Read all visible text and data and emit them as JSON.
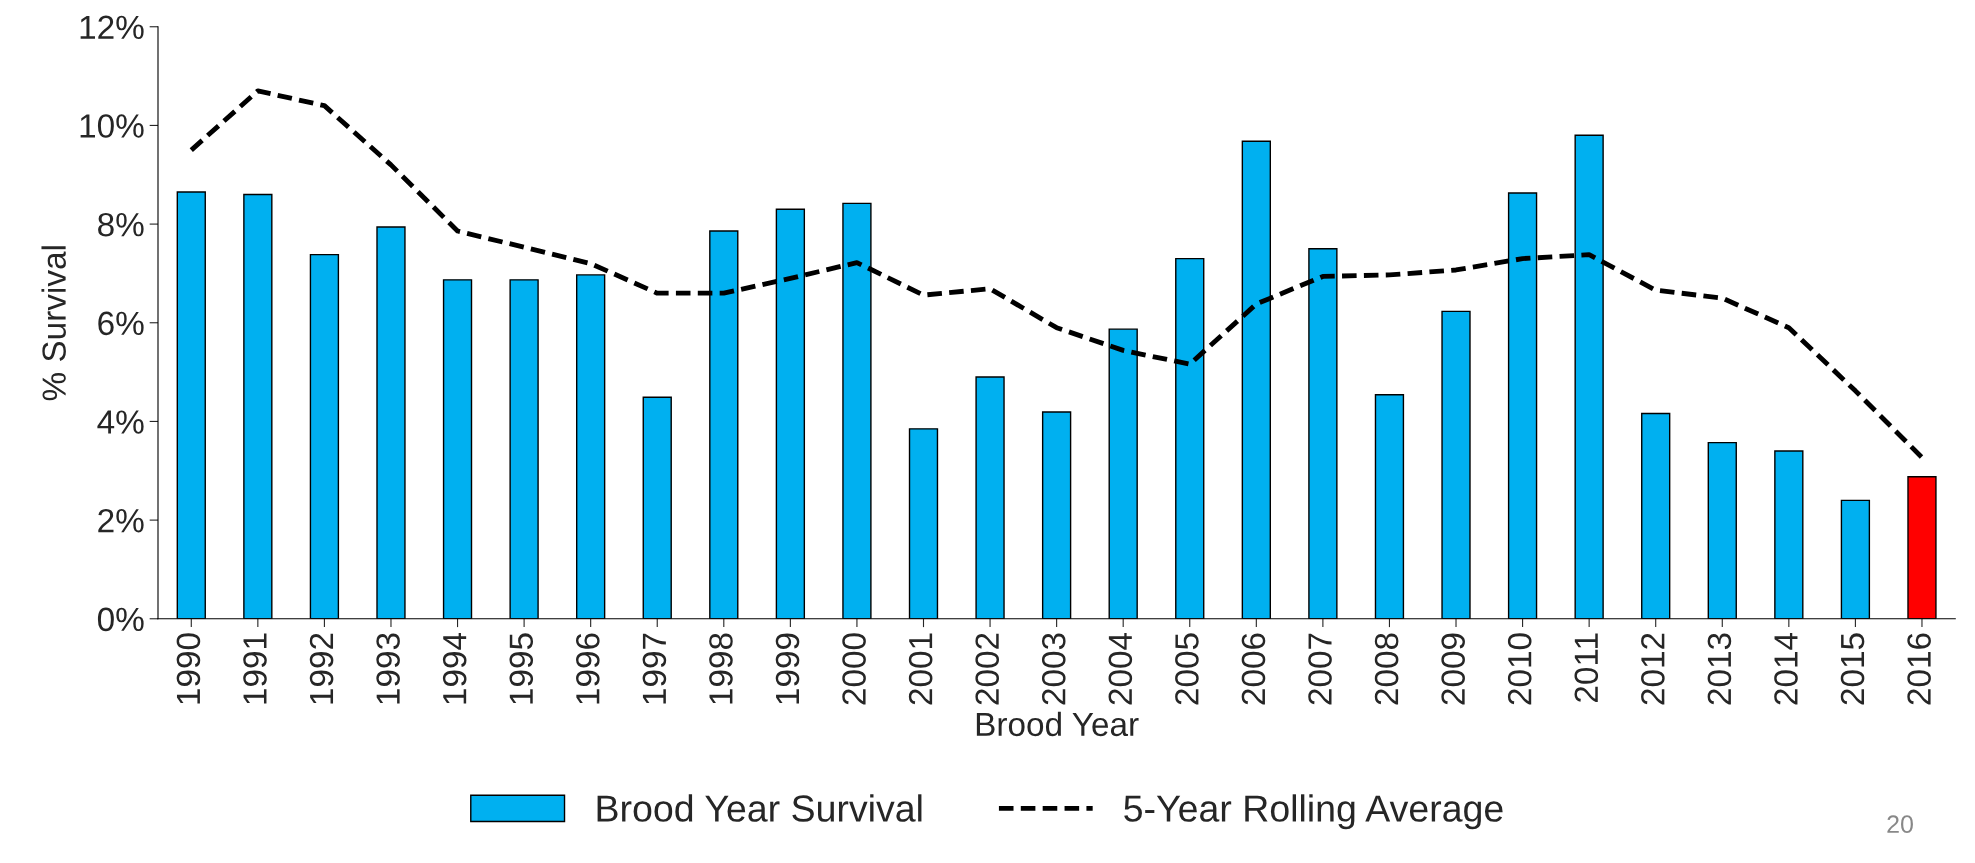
{
  "chart_data": {
    "type": "bar",
    "xlabel": "Brood Year",
    "ylabel": "% Survival",
    "categories": [
      "1990",
      "1991",
      "1992",
      "1993",
      "1994",
      "1995",
      "1996",
      "1997",
      "1998",
      "1999",
      "2000",
      "2001",
      "2002",
      "2003",
      "2004",
      "2005",
      "2006",
      "2007",
      "2008",
      "2009",
      "2010",
      "2011",
      "2012",
      "2013",
      "2014",
      "2015",
      "2016"
    ],
    "series": [
      {
        "name": "Brood Year Survival",
        "color": "#00b0f0",
        "colors": [
          "#00b0f0",
          "#00b0f0",
          "#00b0f0",
          "#00b0f0",
          "#00b0f0",
          "#00b0f0",
          "#00b0f0",
          "#00b0f0",
          "#00b0f0",
          "#00b0f0",
          "#00b0f0",
          "#00b0f0",
          "#00b0f0",
          "#00b0f0",
          "#00b0f0",
          "#00b0f0",
          "#00b0f0",
          "#00b0f0",
          "#00b0f0",
          "#00b0f0",
          "#00b0f0",
          "#00b0f0",
          "#00b0f0",
          "#00b0f0",
          "#00b0f0",
          "#00b0f0",
          "#ff0000"
        ],
        "values": [
          8.65,
          8.6,
          7.38,
          7.94,
          6.87,
          6.87,
          6.97,
          4.49,
          7.86,
          8.3,
          8.42,
          3.85,
          4.9,
          4.19,
          5.87,
          7.3,
          9.68,
          7.5,
          4.54,
          6.23,
          8.63,
          9.8,
          4.16,
          3.57,
          3.4,
          2.4,
          2.88
        ]
      },
      {
        "name": "5-Year Rolling Average",
        "type": "line",
        "color": "#000000",
        "line_style": "dashed",
        "marker": "none",
        "values": [
          9.5,
          10.7,
          10.4,
          9.2,
          7.86,
          7.53,
          7.2,
          6.6,
          6.6,
          6.9,
          7.22,
          6.56,
          6.69,
          5.9,
          5.44,
          5.16,
          6.38,
          6.94,
          6.97,
          7.07,
          7.3,
          7.38,
          6.66,
          6.5,
          5.9,
          4.62,
          3.27
        ]
      }
    ],
    "ylim": [
      0,
      12
    ],
    "yticks": [
      {
        "value": 0,
        "label": "0%"
      },
      {
        "value": 2,
        "label": "2%"
      },
      {
        "value": 4,
        "label": "4%"
      },
      {
        "value": 6,
        "label": "6%"
      },
      {
        "value": 8,
        "label": "8%"
      },
      {
        "value": 10,
        "label": "10%"
      },
      {
        "value": 12,
        "label": "12%"
      }
    ],
    "grid": false,
    "legend": "bottom",
    "annotations": [
      "20"
    ]
  }
}
